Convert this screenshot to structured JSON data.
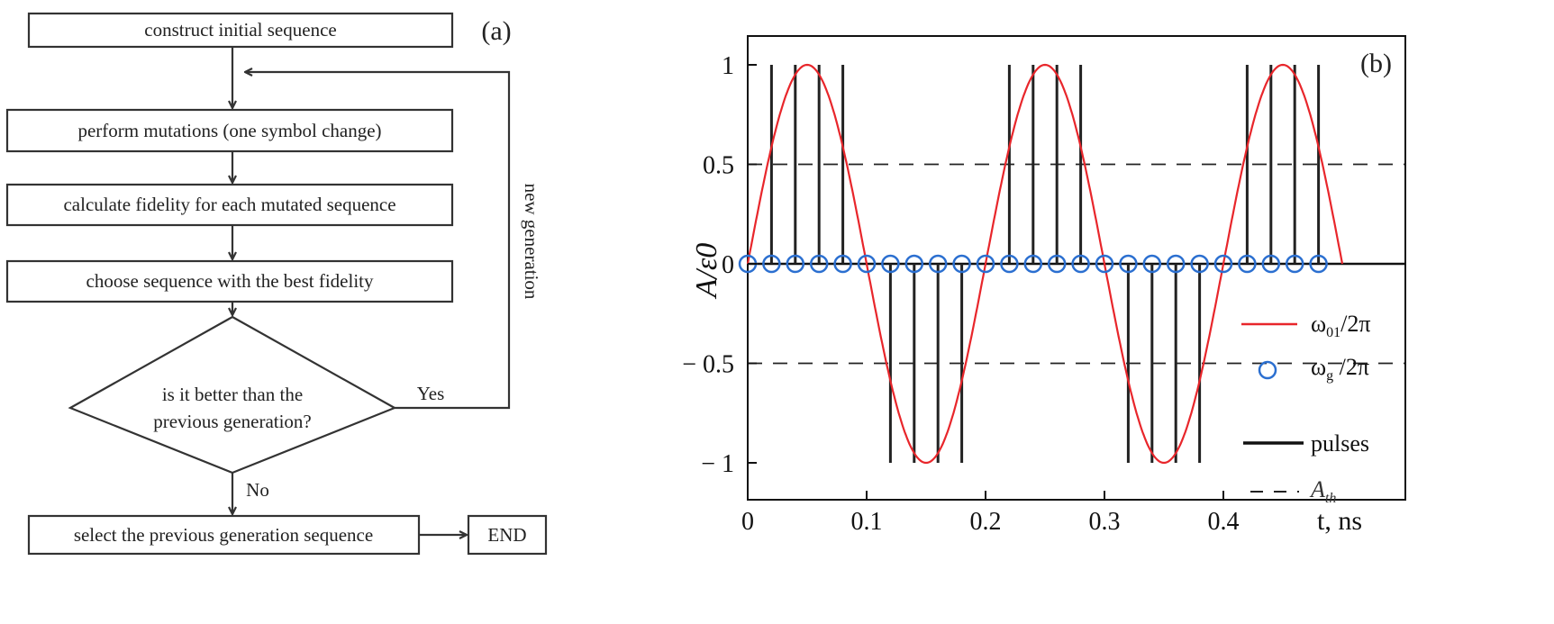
{
  "flowchart": {
    "panel_label": "(a)",
    "steps": [
      "construct initial sequence",
      "perform mutations (one symbol change)",
      "calculate fidelity for each mutated sequence",
      "choose sequence with the best fidelity"
    ],
    "decision_line1": "is it better than the",
    "decision_line2": "previous generation?",
    "yes_label": "Yes",
    "no_label": "No",
    "loop_label": "new generation",
    "final_step": "select the previous generation sequence",
    "end_label": "END"
  },
  "chart_data": {
    "type": "line",
    "panel_label": "(b)",
    "ylabel": "A/ε0",
    "xlabel": "t, ns",
    "xlim": [
      0,
      0.55
    ],
    "ylim": [
      -1.17,
      1.15
    ],
    "xticks": [
      0,
      0.1,
      0.2,
      0.3,
      0.4
    ],
    "xtick_labels": [
      "0",
      "0.1",
      "0.2",
      "0.3",
      "0.4"
    ],
    "yticks": [
      -1,
      -0.5,
      0,
      0.5,
      1
    ],
    "ytick_labels": [
      "− 1",
      "− 0.5",
      "0",
      "0.5",
      "1"
    ],
    "series": [
      {
        "name": "ω01/2π",
        "kind": "sine",
        "amplitude": 1,
        "period_ns": 0.2,
        "t_range": [
          0,
          0.5
        ],
        "color": "#e8262b"
      },
      {
        "name": "ωg /2π",
        "kind": "markers",
        "t": [
          0,
          0.02,
          0.04,
          0.06,
          0.08,
          0.1,
          0.12,
          0.14,
          0.16,
          0.18,
          0.2,
          0.22,
          0.24,
          0.26,
          0.28,
          0.3,
          0.32,
          0.34,
          0.36,
          0.38,
          0.4,
          0.42,
          0.44,
          0.46,
          0.48
        ],
        "y": 0,
        "color": "#2b6fd0"
      },
      {
        "name": "pulses",
        "kind": "stems",
        "t": [
          0.02,
          0.04,
          0.06,
          0.08,
          0.12,
          0.14,
          0.16,
          0.18,
          0.22,
          0.24,
          0.26,
          0.28,
          0.32,
          0.34,
          0.36,
          0.38,
          0.42,
          0.44,
          0.46,
          0.48
        ],
        "values": [
          1,
          1,
          1,
          1,
          -1,
          -1,
          -1,
          -1,
          1,
          1,
          1,
          1,
          -1,
          -1,
          -1,
          -1,
          1,
          1,
          1,
          1
        ],
        "color": "#222222"
      },
      {
        "name": "A_th",
        "kind": "threshold",
        "values": [
          0.5,
          -0.5
        ],
        "color": "#222222"
      }
    ],
    "legend": {
      "placement": "right",
      "entries": [
        {
          "main": "ω",
          "sub": "01",
          "tail": "/2π"
        },
        {
          "main": "ω",
          "sub": "g",
          "tail": " /2π"
        },
        {
          "main": "pulses",
          "sub": "",
          "tail": ""
        },
        {
          "main": "A",
          "sub": "th",
          "tail": ""
        }
      ]
    },
    "ylabel_main": "A/ε",
    "ylabel_sub": "0",
    "xlabel_var": "t",
    "xlabel_unit": ", ns"
  }
}
